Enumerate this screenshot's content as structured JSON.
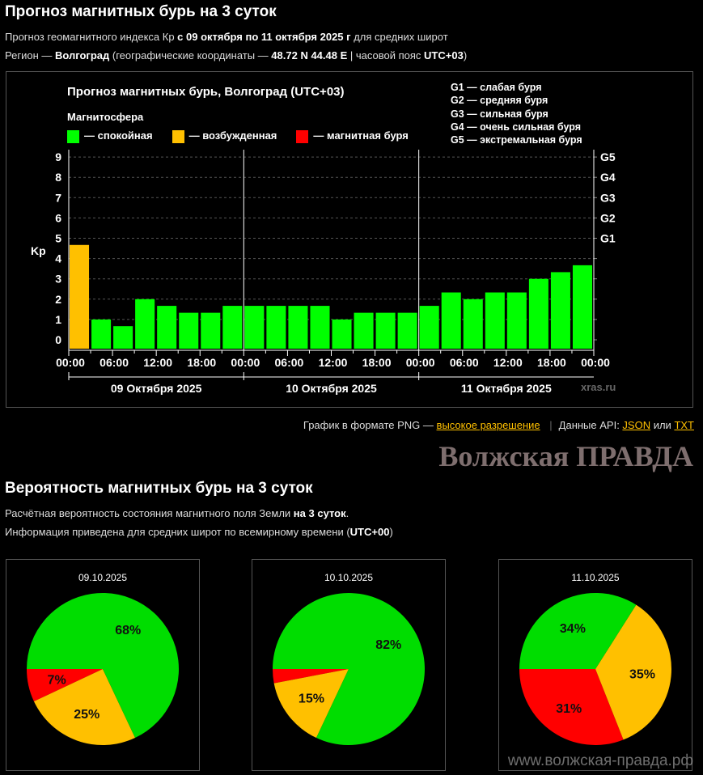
{
  "header": {
    "title": "Прогноз магнитных бурь на 3 суток",
    "line1_pre": "Прогноз геомагнитного индекса Кр ",
    "line1_bold": "с 09 октября по 11 октября 2025 г",
    "line1_post": " для средних широт",
    "line2_pre": "Регион — ",
    "line2_city": "Волгоград",
    "line2_mid": " (географические координаты — ",
    "line2_coords": "48.72 N 44.48 E",
    "line2_mid2": " | часовой пояс ",
    "line2_tz": "UTC+03",
    "line2_end": ")"
  },
  "chart_data": {
    "type": "bar",
    "title": "Прогноз магнитных бурь, Волгоград (UTC+03)",
    "ylabel": "Kp",
    "ylim": [
      0,
      9
    ],
    "grid": true,
    "yticks": [
      "0",
      "1",
      "2",
      "3",
      "4",
      "5",
      "6",
      "7",
      "8",
      "9"
    ],
    "right_ticks": [
      {
        "kp": 5,
        "label": "G1"
      },
      {
        "kp": 6,
        "label": "G2"
      },
      {
        "kp": 7,
        "label": "G3"
      },
      {
        "kp": 8,
        "label": "G4"
      },
      {
        "kp": 9,
        "label": "G5"
      }
    ],
    "xticks": [
      "00:00",
      "06:00",
      "12:00",
      "18:00",
      "00:00",
      "06:00",
      "12:00",
      "18:00",
      "00:00",
      "06:00",
      "12:00",
      "18:00",
      "00:00"
    ],
    "days": [
      "09 Октября 2025",
      "10 Октября 2025",
      "11 Октября 2025"
    ],
    "values": [
      4.67,
      1,
      0.67,
      2,
      1.67,
      1.33,
      1.33,
      1.67,
      1.67,
      1.67,
      1.67,
      1.67,
      1,
      1.33,
      1.33,
      1.33,
      1.67,
      2.33,
      2,
      2.33,
      2.33,
      3,
      3.33,
      3.67
    ],
    "legend_title": "Магнитосфера",
    "legend": [
      {
        "label": "— спокойная",
        "color": "#00ff00"
      },
      {
        "label": "— возбужденная",
        "color": "#ffc000"
      },
      {
        "label": "— магнитная буря",
        "color": "#ff0000"
      }
    ],
    "g_legend": [
      "G1 — слабая буря",
      "G2 — средняя буря",
      "G3 — сильная буря",
      "G4 — очень сильная буря",
      "G5 — экстремальная буря"
    ],
    "credit": "xras.ru"
  },
  "links": {
    "png_pre": "График в формате PNG — ",
    "png_link": "высокое разрешение",
    "api_pre": "Данные API: ",
    "json": "JSON",
    "or": " или ",
    "txt": "TXT"
  },
  "section2": {
    "title": "Вероятность магнитных бурь на 3 суток",
    "line1_pre": "Расчётная вероятность состояния магнитного поля Земли ",
    "line1_bold": "на 3 суток",
    "line1_end": ".",
    "line2_pre": "Информация приведена для средних широт по всемирному времени (",
    "line2_bold": "UTC+00",
    "line2_end": ")"
  },
  "pies": [
    {
      "date": "09.10.2025",
      "slices": [
        {
          "value": 7,
          "label": "7%",
          "color": "#ff0000"
        },
        {
          "value": 25,
          "label": "25%",
          "color": "#ffc000"
        },
        {
          "value": 68,
          "label": "68%",
          "color": "#00dd00"
        }
      ]
    },
    {
      "date": "10.10.2025",
      "slices": [
        {
          "value": 3,
          "label": "",
          "color": "#ff0000"
        },
        {
          "value": 15,
          "label": "15%",
          "color": "#ffc000"
        },
        {
          "value": 82,
          "label": "82%",
          "color": "#00dd00"
        }
      ]
    },
    {
      "date": "11.10.2025",
      "slices": [
        {
          "value": 31,
          "label": "31%",
          "color": "#ff0000"
        },
        {
          "value": 35,
          "label": "35%",
          "color": "#ffc000"
        },
        {
          "value": 34,
          "label": "34%",
          "color": "#00dd00"
        }
      ]
    }
  ],
  "watermark": {
    "name": "Волжская ПРАВДА",
    "url": "www.волжская-правда.рф"
  }
}
